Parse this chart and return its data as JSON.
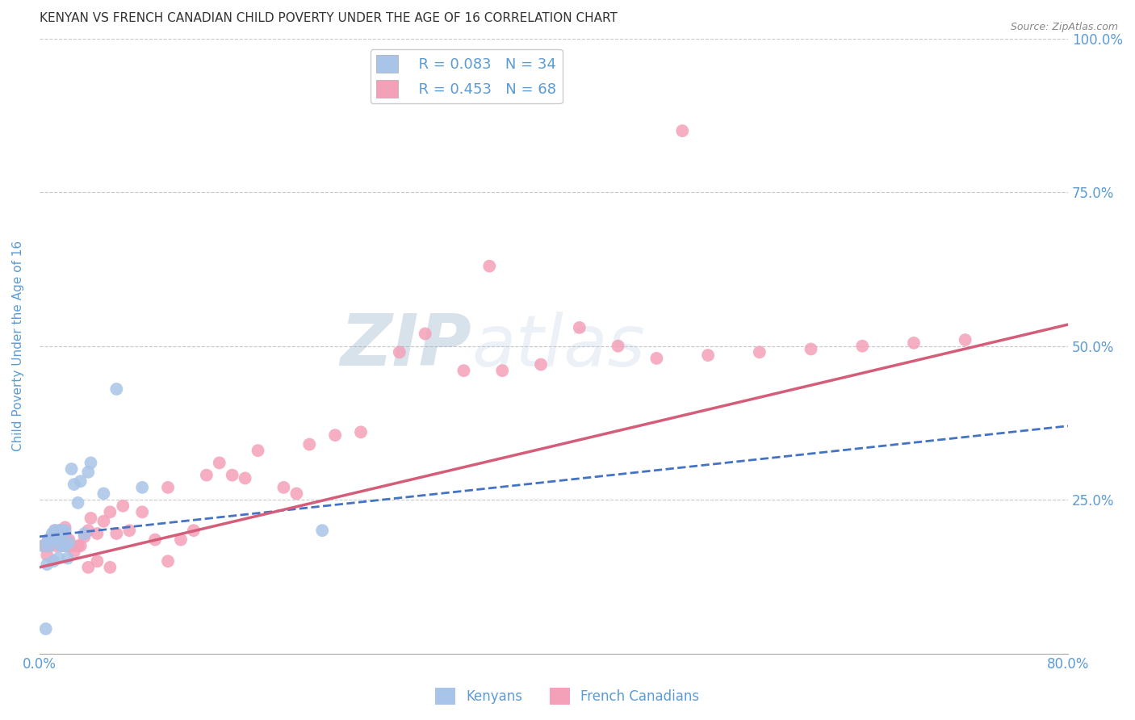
{
  "title": "KENYAN VS FRENCH CANADIAN CHILD POVERTY UNDER THE AGE OF 16 CORRELATION CHART",
  "source": "Source: ZipAtlas.com",
  "ylabel": "Child Poverty Under the Age of 16",
  "xlim": [
    0.0,
    0.8
  ],
  "ylim": [
    0.0,
    1.0
  ],
  "yticks": [
    0.0,
    0.25,
    0.5,
    0.75,
    1.0
  ],
  "title_fontsize": 11,
  "axis_color": "#5b9bd5",
  "grid_color": "#c8c8c8",
  "background_color": "#ffffff",
  "watermark_zip": "ZIP",
  "watermark_atlas": "atlas",
  "kenyan_color": "#a8c4e8",
  "french_color": "#f4a0b8",
  "kenyan_line_color": "#4472c4",
  "french_line_color": "#d45d79",
  "kenyan_R": 0.083,
  "kenyan_N": 34,
  "french_R": 0.453,
  "french_N": 68,
  "kenyan_x": [
    0.003,
    0.005,
    0.006,
    0.007,
    0.008,
    0.009,
    0.01,
    0.01,
    0.011,
    0.012,
    0.012,
    0.013,
    0.014,
    0.015,
    0.015,
    0.016,
    0.017,
    0.018,
    0.019,
    0.02,
    0.02,
    0.022,
    0.023,
    0.025,
    0.027,
    0.03,
    0.032,
    0.035,
    0.038,
    0.04,
    0.05,
    0.06,
    0.08,
    0.22
  ],
  "kenyan_y": [
    0.175,
    0.04,
    0.145,
    0.185,
    0.175,
    0.185,
    0.185,
    0.195,
    0.15,
    0.19,
    0.2,
    0.195,
    0.185,
    0.155,
    0.2,
    0.19,
    0.175,
    0.2,
    0.175,
    0.2,
    0.175,
    0.155,
    0.18,
    0.3,
    0.275,
    0.245,
    0.28,
    0.195,
    0.295,
    0.31,
    0.26,
    0.43,
    0.27,
    0.2
  ],
  "french_x": [
    0.003,
    0.005,
    0.006,
    0.007,
    0.008,
    0.009,
    0.01,
    0.011,
    0.012,
    0.013,
    0.014,
    0.015,
    0.016,
    0.017,
    0.018,
    0.019,
    0.02,
    0.021,
    0.022,
    0.023,
    0.025,
    0.027,
    0.03,
    0.032,
    0.035,
    0.038,
    0.04,
    0.045,
    0.05,
    0.055,
    0.06,
    0.065,
    0.07,
    0.08,
    0.09,
    0.1,
    0.11,
    0.12,
    0.13,
    0.14,
    0.15,
    0.16,
    0.17,
    0.19,
    0.2,
    0.21,
    0.23,
    0.25,
    0.28,
    0.3,
    0.33,
    0.36,
    0.39,
    0.42,
    0.45,
    0.48,
    0.52,
    0.56,
    0.6,
    0.64,
    0.68,
    0.72,
    0.038,
    0.045,
    0.055,
    0.1,
    0.35,
    0.5
  ],
  "french_y": [
    0.175,
    0.175,
    0.16,
    0.185,
    0.175,
    0.18,
    0.19,
    0.185,
    0.2,
    0.175,
    0.19,
    0.185,
    0.2,
    0.175,
    0.19,
    0.185,
    0.205,
    0.185,
    0.175,
    0.185,
    0.175,
    0.165,
    0.175,
    0.175,
    0.19,
    0.2,
    0.22,
    0.195,
    0.215,
    0.23,
    0.195,
    0.24,
    0.2,
    0.23,
    0.185,
    0.27,
    0.185,
    0.2,
    0.29,
    0.31,
    0.29,
    0.285,
    0.33,
    0.27,
    0.26,
    0.34,
    0.355,
    0.36,
    0.49,
    0.52,
    0.46,
    0.46,
    0.47,
    0.53,
    0.5,
    0.48,
    0.485,
    0.49,
    0.495,
    0.5,
    0.505,
    0.51,
    0.14,
    0.15,
    0.14,
    0.15,
    0.63,
    0.85
  ],
  "legend_label_kenyan": "Kenyans",
  "legend_label_french": "French Canadians"
}
